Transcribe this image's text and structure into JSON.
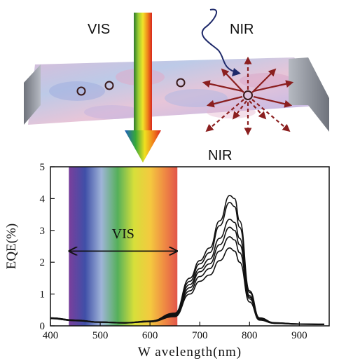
{
  "labels": {
    "vis_top": "VIS",
    "nir_top": "NIR",
    "nir_bottom": "NIR",
    "vis_band": "VIS"
  },
  "colors": {
    "device_edge": "#8a8e96",
    "nir_arrow": "#8b1f1f",
    "curve": "#111111"
  },
  "chart_data": {
    "type": "line",
    "xlabel": "W avelength(nm)",
    "ylabel": "EQE(%)",
    "xlim": [
      400,
      960
    ],
    "ylim": [
      0,
      5
    ],
    "xticks": [
      "400",
      "500",
      "600",
      "700",
      "800",
      "900"
    ],
    "yticks": [
      "0",
      "1",
      "2",
      "3",
      "4",
      "5"
    ],
    "shaded_band": {
      "label": "VIS",
      "x_start": 437,
      "x_end": 655
    },
    "x": [
      400,
      450,
      500,
      550,
      600,
      650,
      680,
      700,
      720,
      740,
      760,
      770,
      780,
      800,
      820,
      850,
      900,
      950
    ],
    "series": [
      {
        "values": [
          0.25,
          0.18,
          0.12,
          0.1,
          0.15,
          0.4,
          1.5,
          2.05,
          2.45,
          3.3,
          4.1,
          4.0,
          3.3,
          1.1,
          0.25,
          0.1,
          0.06,
          0.05
        ]
      },
      {
        "values": [
          0.25,
          0.18,
          0.12,
          0.1,
          0.15,
          0.38,
          1.4,
          1.95,
          2.3,
          3.15,
          3.88,
          3.75,
          3.1,
          1.05,
          0.24,
          0.1,
          0.06,
          0.05
        ]
      },
      {
        "values": [
          0.24,
          0.17,
          0.12,
          0.1,
          0.14,
          0.35,
          1.3,
          1.8,
          2.1,
          2.75,
          3.35,
          3.25,
          2.75,
          0.95,
          0.22,
          0.09,
          0.06,
          0.05
        ]
      },
      {
        "values": [
          0.24,
          0.17,
          0.12,
          0.1,
          0.14,
          0.33,
          1.2,
          1.7,
          1.95,
          2.55,
          3.1,
          3.0,
          2.55,
          0.9,
          0.21,
          0.09,
          0.05,
          0.05
        ]
      },
      {
        "values": [
          0.23,
          0.16,
          0.11,
          0.09,
          0.13,
          0.31,
          1.1,
          1.55,
          1.8,
          2.35,
          2.8,
          2.7,
          2.3,
          0.85,
          0.2,
          0.08,
          0.05,
          0.04
        ]
      },
      {
        "values": [
          0.23,
          0.16,
          0.11,
          0.09,
          0.13,
          0.29,
          1.0,
          1.4,
          1.6,
          2.05,
          2.45,
          2.35,
          2.0,
          0.75,
          0.18,
          0.08,
          0.05,
          0.04
        ]
      }
    ]
  }
}
